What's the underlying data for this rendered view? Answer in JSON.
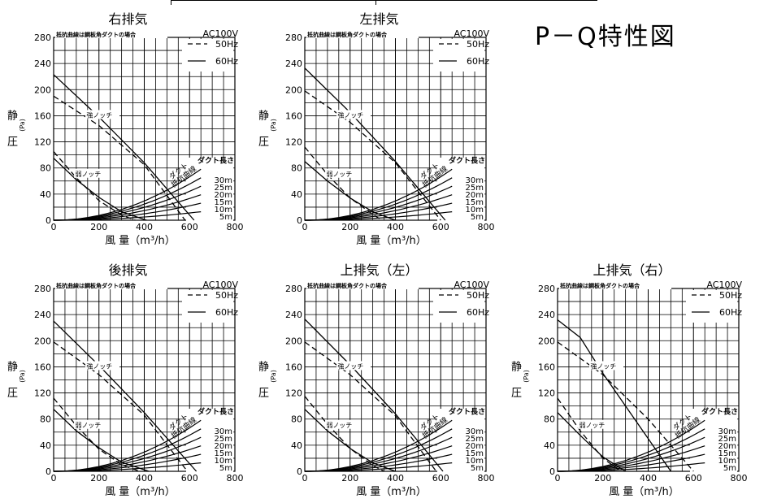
{
  "page": {
    "title": "P－Q特性図"
  },
  "common": {
    "note": "抵抗曲線は鋼板角ダクトの場合",
    "power": "AC100V",
    "legend_50": "50Hz",
    "legend_60": "60Hz",
    "ylabel_1": "静",
    "ylabel_2": "圧",
    "yunit": "(Pa)",
    "xlabel": "風 量（m³/h）",
    "strong_label": "強ノッチ",
    "weak_label": "弱ノッチ",
    "duct_curve_label_1": "ダクト",
    "duct_curve_label_2": "抵抗曲線",
    "duct_length_label": "ダクト長さ",
    "duct_lengths": [
      "30m",
      "25m",
      "20m",
      "15m",
      "10m",
      "5m"
    ],
    "yticks": [
      "0",
      "40",
      "80",
      "120",
      "160",
      "200",
      "240",
      "280"
    ],
    "xticks": [
      "0",
      "200",
      "400",
      "600",
      "800"
    ]
  },
  "chart_data": [
    {
      "type": "line",
      "title": "右排気",
      "xlabel": "風 量（m³/h）",
      "ylabel": "静圧 (Pa)",
      "xlim": [
        0,
        800
      ],
      "ylim": [
        0,
        280
      ],
      "series": [
        {
          "name": "強ノッチ 60Hz",
          "x": [
            0,
            200,
            400,
            620
          ],
          "y": [
            223,
            158,
            88,
            0
          ]
        },
        {
          "name": "強ノッチ 50Hz",
          "x": [
            0,
            200,
            400,
            580
          ],
          "y": [
            190,
            145,
            85,
            0
          ]
        },
        {
          "name": "弱ノッチ 60Hz",
          "x": [
            0,
            100,
            200,
            300,
            410
          ],
          "y": [
            95,
            62,
            35,
            13,
            0
          ]
        },
        {
          "name": "弱ノッチ 50Hz",
          "x": [
            0,
            100,
            200,
            300,
            360
          ],
          "y": [
            105,
            65,
            30,
            8,
            0
          ]
        }
      ],
      "duct_curves": [
        {
          "name": "30m",
          "x": [
            0,
            650
          ],
          "y": [
            0,
            78
          ]
        },
        {
          "name": "25m",
          "x": [
            0,
            650
          ],
          "y": [
            0,
            65
          ]
        },
        {
          "name": "20m",
          "x": [
            0,
            650
          ],
          "y": [
            0,
            52
          ]
        },
        {
          "name": "15m",
          "x": [
            0,
            650
          ],
          "y": [
            0,
            39
          ]
        },
        {
          "name": "10m",
          "x": [
            0,
            650
          ],
          "y": [
            0,
            26
          ]
        },
        {
          "name": "5m",
          "x": [
            0,
            650
          ],
          "y": [
            0,
            13
          ]
        }
      ]
    },
    {
      "type": "line",
      "title": "左排気",
      "xlabel": "風 量（m³/h）",
      "ylabel": "静圧 (Pa)",
      "xlim": [
        0,
        800
      ],
      "ylim": [
        0,
        280
      ],
      "series": [
        {
          "name": "強ノッチ 60Hz",
          "x": [
            0,
            200,
            400,
            620
          ],
          "y": [
            233,
            165,
            90,
            0
          ]
        },
        {
          "name": "強ノッチ 50Hz",
          "x": [
            0,
            200,
            400,
            600
          ],
          "y": [
            198,
            150,
            88,
            0
          ]
        },
        {
          "name": "弱ノッチ 60Hz",
          "x": [
            0,
            100,
            200,
            300,
            400
          ],
          "y": [
            90,
            60,
            34,
            13,
            0
          ]
        },
        {
          "name": "弱ノッチ 50Hz",
          "x": [
            0,
            100,
            200,
            300,
            340
          ],
          "y": [
            112,
            70,
            34,
            9,
            0
          ]
        }
      ],
      "duct_curves": [
        {
          "name": "30m",
          "x": [
            0,
            650
          ],
          "y": [
            0,
            78
          ]
        },
        {
          "name": "25m",
          "x": [
            0,
            650
          ],
          "y": [
            0,
            65
          ]
        },
        {
          "name": "20m",
          "x": [
            0,
            650
          ],
          "y": [
            0,
            52
          ]
        },
        {
          "name": "15m",
          "x": [
            0,
            650
          ],
          "y": [
            0,
            39
          ]
        },
        {
          "name": "10m",
          "x": [
            0,
            650
          ],
          "y": [
            0,
            26
          ]
        },
        {
          "name": "5m",
          "x": [
            0,
            650
          ],
          "y": [
            0,
            13
          ]
        }
      ]
    },
    {
      "type": "line",
      "title": "後排気",
      "xlabel": "風 量（m³/h）",
      "ylabel": "静圧 (Pa)",
      "xlim": [
        0,
        800
      ],
      "ylim": [
        0,
        280
      ],
      "series": [
        {
          "name": "強ノッチ 60Hz",
          "x": [
            0,
            200,
            400,
            630
          ],
          "y": [
            230,
            162,
            90,
            0
          ]
        },
        {
          "name": "強ノッチ 50Hz",
          "x": [
            0,
            200,
            400,
            590
          ],
          "y": [
            198,
            148,
            86,
            0
          ]
        },
        {
          "name": "弱ノッチ 60Hz",
          "x": [
            0,
            100,
            200,
            300,
            420
          ],
          "y": [
            95,
            62,
            36,
            14,
            0
          ]
        },
        {
          "name": "弱ノッチ 50Hz",
          "x": [
            0,
            100,
            200,
            300,
            380
          ],
          "y": [
            112,
            70,
            34,
            10,
            0
          ]
        }
      ],
      "duct_curves": [
        {
          "name": "30m",
          "x": [
            0,
            650
          ],
          "y": [
            0,
            78
          ]
        },
        {
          "name": "25m",
          "x": [
            0,
            650
          ],
          "y": [
            0,
            65
          ]
        },
        {
          "name": "20m",
          "x": [
            0,
            650
          ],
          "y": [
            0,
            52
          ]
        },
        {
          "name": "15m",
          "x": [
            0,
            650
          ],
          "y": [
            0,
            39
          ]
        },
        {
          "name": "10m",
          "x": [
            0,
            650
          ],
          "y": [
            0,
            26
          ]
        },
        {
          "name": "5m",
          "x": [
            0,
            650
          ],
          "y": [
            0,
            13
          ]
        }
      ]
    },
    {
      "type": "line",
      "title": "上排気（左）",
      "xlabel": "風 量（m³/h）",
      "ylabel": "静圧 (Pa)",
      "xlim": [
        0,
        800
      ],
      "ylim": [
        0,
        280
      ],
      "series": [
        {
          "name": "強ノッチ 60Hz",
          "x": [
            0,
            200,
            400,
            610
          ],
          "y": [
            233,
            163,
            88,
            0
          ]
        },
        {
          "name": "強ノッチ 50Hz",
          "x": [
            0,
            200,
            400,
            580
          ],
          "y": [
            198,
            148,
            85,
            0
          ]
        },
        {
          "name": "弱ノッチ 60Hz",
          "x": [
            0,
            100,
            200,
            300,
            400
          ],
          "y": [
            95,
            62,
            35,
            13,
            0
          ]
        },
        {
          "name": "弱ノッチ 50Hz",
          "x": [
            0,
            100,
            200,
            300,
            350
          ],
          "y": [
            115,
            72,
            35,
            9,
            0
          ]
        }
      ],
      "duct_curves": [
        {
          "name": "30m",
          "x": [
            0,
            650
          ],
          "y": [
            0,
            78
          ]
        },
        {
          "name": "25m",
          "x": [
            0,
            650
          ],
          "y": [
            0,
            65
          ]
        },
        {
          "name": "20m",
          "x": [
            0,
            650
          ],
          "y": [
            0,
            52
          ]
        },
        {
          "name": "15m",
          "x": [
            0,
            650
          ],
          "y": [
            0,
            39
          ]
        },
        {
          "name": "10m",
          "x": [
            0,
            650
          ],
          "y": [
            0,
            26
          ]
        },
        {
          "name": "5m",
          "x": [
            0,
            650
          ],
          "y": [
            0,
            13
          ]
        }
      ]
    },
    {
      "type": "line",
      "title": "上排気（右）",
      "xlabel": "風 量（m³/h）",
      "ylabel": "静圧 (Pa)",
      "xlim": [
        0,
        800
      ],
      "ylim": [
        0,
        280
      ],
      "series": [
        {
          "name": "強ノッチ 60Hz",
          "x": [
            0,
            100,
            200,
            300,
            400,
            500
          ],
          "y": [
            232,
            205,
            150,
            100,
            50,
            0
          ]
        },
        {
          "name": "強ノッチ 50Hz",
          "x": [
            0,
            200,
            400,
            600
          ],
          "y": [
            198,
            148,
            80,
            0
          ]
        },
        {
          "name": "弱ノッチ 60Hz",
          "x": [
            0,
            100,
            200,
            300
          ],
          "y": [
            90,
            55,
            22,
            0
          ]
        },
        {
          "name": "弱ノッチ 50Hz",
          "x": [
            0,
            100,
            200,
            280
          ],
          "y": [
            112,
            62,
            20,
            0
          ]
        }
      ],
      "duct_curves": [
        {
          "name": "30m",
          "x": [
            0,
            650
          ],
          "y": [
            0,
            78
          ]
        },
        {
          "name": "25m",
          "x": [
            0,
            650
          ],
          "y": [
            0,
            65
          ]
        },
        {
          "name": "20m",
          "x": [
            0,
            650
          ],
          "y": [
            0,
            52
          ]
        },
        {
          "name": "15m",
          "x": [
            0,
            650
          ],
          "y": [
            0,
            39
          ]
        },
        {
          "name": "10m",
          "x": [
            0,
            650
          ],
          "y": [
            0,
            26
          ]
        },
        {
          "name": "5m",
          "x": [
            0,
            650
          ],
          "y": [
            0,
            13
          ]
        }
      ]
    }
  ]
}
